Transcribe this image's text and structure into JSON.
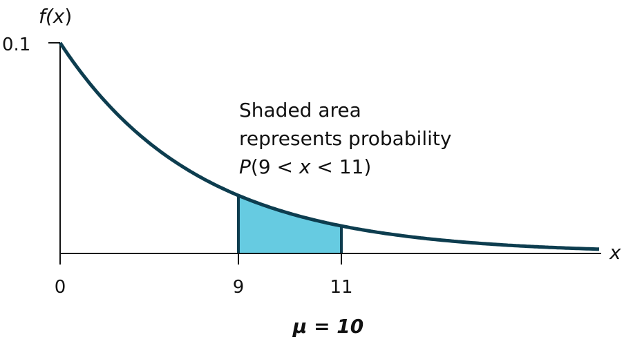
{
  "chart_data": {
    "type": "area",
    "function": "f(x) = 0.1 e^(-0.1x)",
    "ylabel_prefix": "f(",
    "ylabel_var": "x",
    "ylabel_suffix": ")",
    "xlabel": "x",
    "y_ticks": [
      {
        "value": 0.1,
        "label": "0.1"
      }
    ],
    "x_ticks": [
      {
        "value": 0,
        "label": "0"
      },
      {
        "value": 9,
        "label": "9"
      },
      {
        "value": 11,
        "label": "11"
      }
    ],
    "shaded_interval": [
      9,
      11
    ],
    "annotation": {
      "line1": "Shaded area",
      "line2": "represents probability",
      "line3_prefix": "P",
      "line3_mid": "(9 < ",
      "line3_var": "x",
      "line3_suffix": " < 11)"
    },
    "caption": "μ = 10",
    "colors": {
      "curve": "#0d3d4f",
      "shade": "#66cbe1",
      "axis": "#111111"
    }
  }
}
